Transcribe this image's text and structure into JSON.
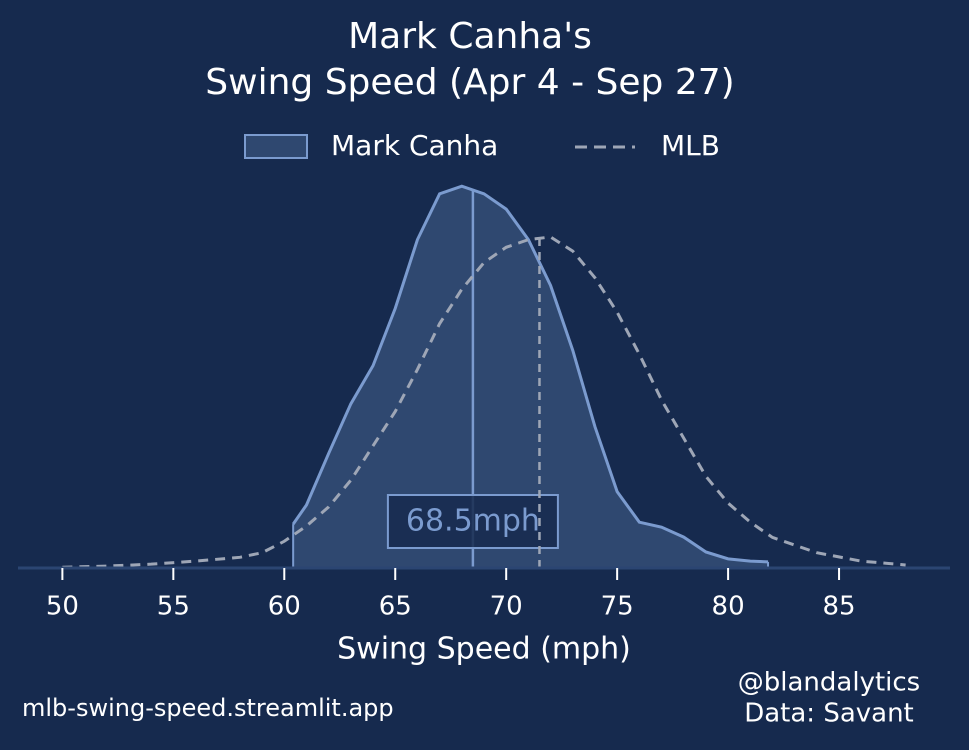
{
  "chart_data": {
    "type": "density",
    "title": [
      "Mark Canha's",
      "Swing Speed (Apr 4 - Sep 27)"
    ],
    "xlabel": "Swing Speed (mph)",
    "xlim": [
      48,
      90
    ],
    "ylim": [
      0,
      0.11
    ],
    "xticks": [
      50,
      55,
      60,
      65,
      70,
      75,
      80,
      85
    ],
    "legend": "upper center",
    "series": [
      {
        "name": "Mark Canha",
        "color": "#7b9bcf",
        "fill": "#2f4870",
        "dashed": false,
        "median": 68.5,
        "median_label": "68.5mph",
        "x": [
          60.4,
          61,
          62,
          63,
          64,
          65,
          66,
          67,
          68,
          69,
          70,
          71,
          72,
          73,
          74,
          75,
          76,
          77,
          78,
          79,
          80,
          81,
          81.8
        ],
        "values": [
          0.0115,
          0.0165,
          0.03,
          0.043,
          0.053,
          0.068,
          0.086,
          0.098,
          0.1,
          0.098,
          0.094,
          0.086,
          0.074,
          0.057,
          0.037,
          0.02,
          0.012,
          0.0107,
          0.0081,
          0.0042,
          0.0024,
          0.0018,
          0.0016
        ]
      },
      {
        "name": "MLB",
        "color": "#9ea6b6",
        "dashed": true,
        "median": 71.5,
        "x": [
          50,
          52,
          54,
          56,
          58,
          59,
          60,
          61,
          62,
          63,
          64,
          65,
          66,
          67,
          68,
          69,
          70,
          71,
          72,
          73,
          74,
          75,
          76,
          77,
          78,
          79,
          80,
          81,
          82,
          84,
          86,
          88
        ],
        "values": [
          0.0002,
          0.0005,
          0.001,
          0.0018,
          0.0028,
          0.004,
          0.007,
          0.011,
          0.016,
          0.023,
          0.032,
          0.041,
          0.052,
          0.064,
          0.073,
          0.08,
          0.084,
          0.086,
          0.0867,
          0.083,
          0.076,
          0.067,
          0.056,
          0.044,
          0.034,
          0.024,
          0.017,
          0.012,
          0.008,
          0.004,
          0.0018,
          0.0008
        ]
      }
    ]
  },
  "footer": {
    "site": "mlb-swing-speed.streamlit.app",
    "credits": [
      "@blandalytics",
      "Data: Savant"
    ]
  }
}
